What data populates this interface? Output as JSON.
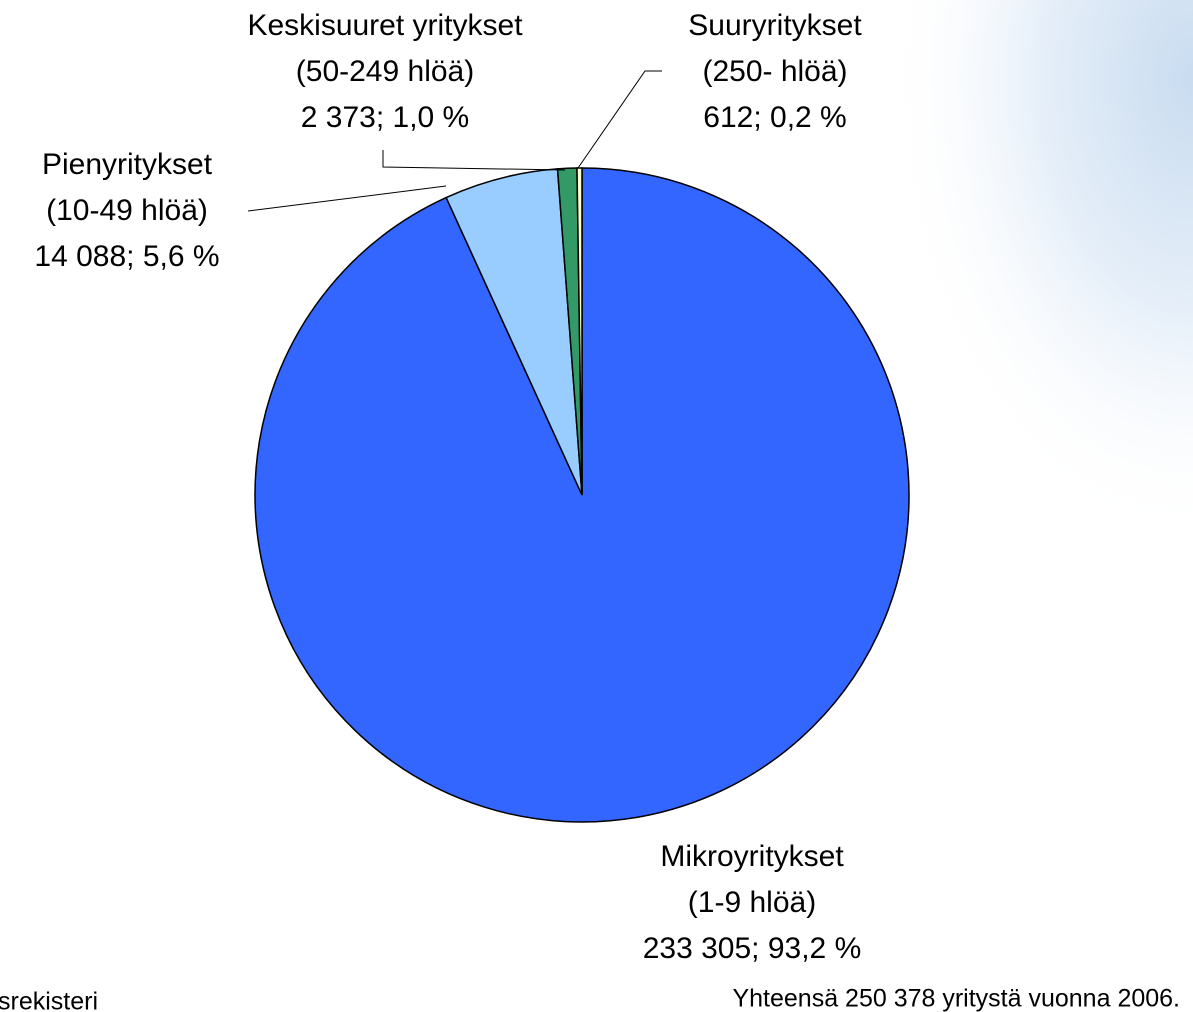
{
  "chart_data": {
    "type": "pie",
    "categories": [
      "Mikroyritykset",
      "Pienyritykset",
      "Keskisuuret yritykset",
      "Suuryritykset"
    ],
    "sublabels": [
      "(1-9 hlöä)",
      "(10-49 hlöä)",
      "(50-249 hlöä)",
      "(250- hlöä)"
    ],
    "values": [
      233305,
      14088,
      2373,
      612
    ],
    "value_labels": [
      "233 305; 93,2 %",
      "14 088; 5,6 %",
      "2 373; 1,0 %",
      "612; 0,2 %"
    ],
    "colors": [
      "#3366ff",
      "#99ccff",
      "#339966",
      "#ffffcc"
    ],
    "note": "Yhteensä 250 378 yritystä vuonna 2006.",
    "source": "srekisteri"
  }
}
